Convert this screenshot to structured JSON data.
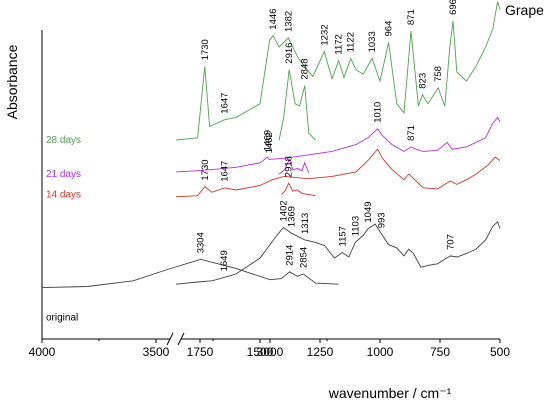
{
  "chart_data": {
    "type": "line",
    "title": "Grape",
    "xlabel": "wavenumber / cm⁻¹",
    "ylabel": "Absorbance",
    "x_axis_break": [
      2700,
      1850
    ],
    "x_ticks_left": [
      "4000",
      "3500",
      "3000"
    ],
    "x_ticks_right": [
      "1750",
      "1500",
      "1250",
      "1000",
      "750",
      "500"
    ],
    "grid": false,
    "legend": "none",
    "series": [
      {
        "name": "original",
        "color": "#404040",
        "points": [
          [
            4000,
            0.1
          ],
          [
            3800,
            0.11
          ],
          [
            3600,
            0.16
          ],
          [
            3450,
            0.26
          ],
          [
            3304,
            0.35
          ],
          [
            3150,
            0.27
          ],
          [
            3000,
            0.17
          ],
          [
            2950,
            0.18
          ],
          [
            2914,
            0.24
          ],
          [
            2880,
            0.2
          ],
          [
            2854,
            0.22
          ],
          [
            2800,
            0.14
          ],
          [
            2700,
            0.13
          ],
          [
            1850,
            0.13
          ],
          [
            1760,
            0.15
          ],
          [
            1700,
            0.16
          ],
          [
            1649,
            0.19
          ],
          [
            1600,
            0.22
          ],
          [
            1500,
            0.36
          ],
          [
            1430,
            0.56
          ],
          [
            1402,
            0.63
          ],
          [
            1369,
            0.58
          ],
          [
            1313,
            0.52
          ],
          [
            1270,
            0.5
          ],
          [
            1230,
            0.47
          ],
          [
            1190,
            0.36
          ],
          [
            1157,
            0.41
          ],
          [
            1130,
            0.37
          ],
          [
            1103,
            0.5
          ],
          [
            1070,
            0.56
          ],
          [
            1049,
            0.62
          ],
          [
            1020,
            0.66
          ],
          [
            993,
            0.57
          ],
          [
            965,
            0.48
          ],
          [
            930,
            0.45
          ],
          [
            900,
            0.38
          ],
          [
            880,
            0.44
          ],
          [
            860,
            0.4
          ],
          [
            830,
            0.28
          ],
          [
            790,
            0.3
          ],
          [
            760,
            0.31
          ],
          [
            730,
            0.35
          ],
          [
            707,
            0.38
          ],
          [
            680,
            0.37
          ],
          [
            640,
            0.4
          ],
          [
            600,
            0.44
          ],
          [
            560,
            0.52
          ],
          [
            530,
            0.64
          ],
          [
            510,
            0.68
          ],
          [
            500,
            0.62
          ]
        ]
      },
      {
        "name": "14 days",
        "color": "#c0392b",
        "points": [
          [
            2950,
            0.92
          ],
          [
            2935,
            0.95
          ],
          [
            2918,
            1.02
          ],
          [
            2900,
            0.95
          ],
          [
            2880,
            0.96
          ],
          [
            2860,
            0.93
          ],
          [
            2800,
            0.91
          ],
          [
            1850,
            0.9
          ],
          [
            1760,
            0.91
          ],
          [
            1730,
            0.99
          ],
          [
            1700,
            0.94
          ],
          [
            1647,
            0.98
          ],
          [
            1600,
            0.96
          ],
          [
            1500,
            1.0
          ],
          [
            1450,
            1.05
          ],
          [
            1400,
            1.08
          ],
          [
            1300,
            1.06
          ],
          [
            1200,
            1.08
          ],
          [
            1100,
            1.12
          ],
          [
            1050,
            1.22
          ],
          [
            1010,
            1.32
          ],
          [
            990,
            1.24
          ],
          [
            950,
            1.14
          ],
          [
            900,
            1.05
          ],
          [
            880,
            1.1
          ],
          [
            860,
            1.06
          ],
          [
            820,
            0.98
          ],
          [
            760,
            0.97
          ],
          [
            707,
            1.04
          ],
          [
            680,
            1.01
          ],
          [
            640,
            1.05
          ],
          [
            600,
            1.1
          ],
          [
            550,
            1.18
          ],
          [
            520,
            1.25
          ],
          [
            500,
            1.22
          ]
        ]
      },
      {
        "name": "21 days",
        "color": "#b030d0",
        "points": [
          [
            2960,
            1.1
          ],
          [
            2935,
            1.14
          ],
          [
            2916,
            1.23
          ],
          [
            2900,
            1.14
          ],
          [
            2880,
            1.15
          ],
          [
            2860,
            1.13
          ],
          [
            2848,
            1.2
          ],
          [
            2830,
            1.11
          ],
          [
            1850,
            1.12
          ],
          [
            1760,
            1.13
          ],
          [
            1700,
            1.14
          ],
          [
            1600,
            1.16
          ],
          [
            1500,
            1.2
          ],
          [
            1469,
            1.25
          ],
          [
            1462,
            1.23
          ],
          [
            1400,
            1.24
          ],
          [
            1300,
            1.27
          ],
          [
            1200,
            1.3
          ],
          [
            1100,
            1.36
          ],
          [
            1050,
            1.42
          ],
          [
            1010,
            1.5
          ],
          [
            990,
            1.44
          ],
          [
            950,
            1.36
          ],
          [
            900,
            1.3
          ],
          [
            871,
            1.34
          ],
          [
            850,
            1.32
          ],
          [
            820,
            1.3
          ],
          [
            760,
            1.31
          ],
          [
            720,
            1.38
          ],
          [
            700,
            1.32
          ],
          [
            640,
            1.34
          ],
          [
            600,
            1.38
          ],
          [
            560,
            1.42
          ],
          [
            530,
            1.55
          ],
          [
            510,
            1.6
          ],
          [
            500,
            1.56
          ]
        ]
      },
      {
        "name": "28 days",
        "color": "#50a050",
        "points": [
          [
            2960,
            1.4
          ],
          [
            2940,
            1.6
          ],
          [
            2916,
            2.02
          ],
          [
            2890,
            1.72
          ],
          [
            2870,
            1.7
          ],
          [
            2848,
            1.88
          ],
          [
            2830,
            1.46
          ],
          [
            2800,
            1.4
          ],
          [
            1850,
            1.4
          ],
          [
            1760,
            1.42
          ],
          [
            1730,
            2.05
          ],
          [
            1710,
            1.52
          ],
          [
            1647,
            1.58
          ],
          [
            1600,
            1.6
          ],
          [
            1500,
            1.72
          ],
          [
            1460,
            2.28
          ],
          [
            1446,
            2.32
          ],
          [
            1420,
            2.22
          ],
          [
            1382,
            2.3
          ],
          [
            1340,
            2.12
          ],
          [
            1280,
            1.96
          ],
          [
            1232,
            2.18
          ],
          [
            1200,
            1.94
          ],
          [
            1172,
            2.1
          ],
          [
            1150,
            1.95
          ],
          [
            1122,
            2.12
          ],
          [
            1100,
            2.02
          ],
          [
            1070,
            1.98
          ],
          [
            1033,
            2.12
          ],
          [
            1000,
            1.92
          ],
          [
            964,
            2.26
          ],
          [
            930,
            1.72
          ],
          [
            900,
            1.64
          ],
          [
            871,
            2.36
          ],
          [
            840,
            1.7
          ],
          [
            823,
            1.8
          ],
          [
            800,
            1.72
          ],
          [
            758,
            1.86
          ],
          [
            730,
            1.7
          ],
          [
            710,
            2.2
          ],
          [
            696,
            2.45
          ],
          [
            680,
            2.0
          ],
          [
            640,
            1.92
          ],
          [
            600,
            2.05
          ],
          [
            560,
            2.22
          ],
          [
            530,
            2.38
          ],
          [
            510,
            2.62
          ],
          [
            500,
            2.55
          ]
        ]
      }
    ],
    "annotations": [
      {
        "series": "original",
        "items": [
          [
            "3304",
            3304,
            0.35
          ],
          [
            "2914",
            2914,
            0.24
          ],
          [
            "2854",
            2854,
            0.22
          ],
          [
            "1649",
            1649,
            0.19
          ],
          [
            "1402",
            1402,
            0.63
          ],
          [
            "1369",
            1369,
            0.58
          ],
          [
            "1313",
            1313,
            0.52
          ],
          [
            "1157",
            1157,
            0.41
          ],
          [
            "1103",
            1103,
            0.5
          ],
          [
            "1049",
            1049,
            0.62
          ],
          [
            "993",
            993,
            0.57
          ],
          [
            "707",
            707,
            0.38
          ]
        ]
      },
      {
        "series": "14 days",
        "items": [
          [
            "2918",
            2918,
            1.02
          ],
          [
            "1730",
            1730,
            0.99
          ],
          [
            "1647",
            1647,
            0.98
          ]
        ]
      },
      {
        "series": "21 days",
        "items": [
          [
            "1469",
            1469,
            1.25
          ],
          [
            "1462",
            1462,
            1.23
          ],
          [
            "1010",
            1010,
            1.5
          ],
          [
            "871",
            871,
            1.34
          ]
        ]
      },
      {
        "series": "28 days",
        "items": [
          [
            "2916",
            2916,
            2.02
          ],
          [
            "2848",
            2848,
            1.88
          ],
          [
            "1730",
            1730,
            2.05
          ],
          [
            "1647",
            1647,
            1.58
          ],
          [
            "1446",
            1446,
            2.32
          ],
          [
            "1382",
            1382,
            2.3
          ],
          [
            "1232",
            1232,
            2.18
          ],
          [
            "1172",
            1172,
            2.1
          ],
          [
            "1122",
            1122,
            2.12
          ],
          [
            "1033",
            1033,
            2.12
          ],
          [
            "964",
            964,
            2.26
          ],
          [
            "871",
            871,
            2.36
          ],
          [
            "823",
            823,
            1.8
          ],
          [
            "758",
            758,
            1.86
          ],
          [
            "696",
            696,
            2.45
          ]
        ]
      }
    ]
  }
}
